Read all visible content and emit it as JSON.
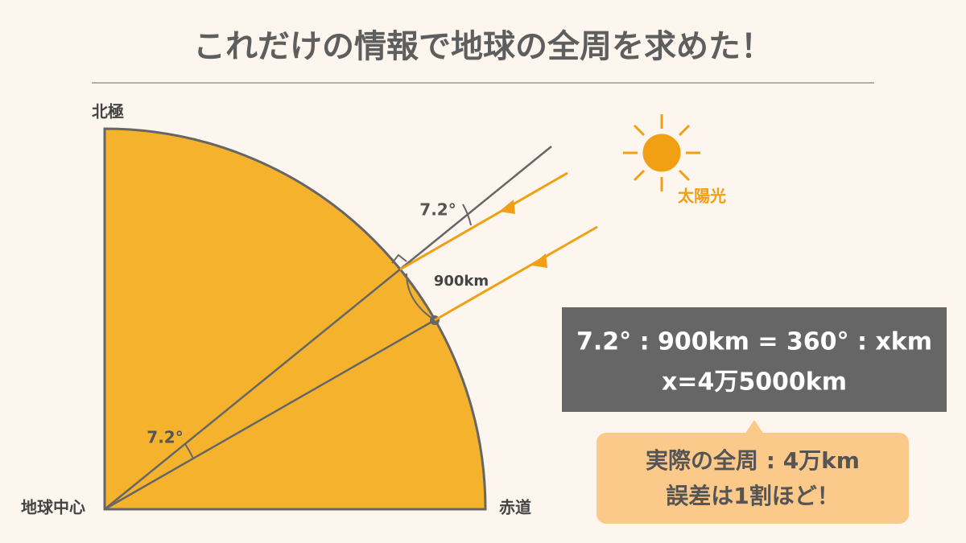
{
  "header": {
    "title": "これだけの情報で地球の全周を求めた！"
  },
  "labels": {
    "north_pole": "北極",
    "earth_center": "地球中心",
    "equator": "赤道",
    "sunlight": "太陽光",
    "angle_top": "7.2°",
    "angle_center": "7.2°",
    "arc_distance": "900km"
  },
  "formula": {
    "lines": [
      "7.2° : 900km = 360° : xkm",
      "x=4万5000km"
    ]
  },
  "note": {
    "lines": [
      "実際の全周 : 4万km",
      "誤差は1割ほど！"
    ]
  }
}
